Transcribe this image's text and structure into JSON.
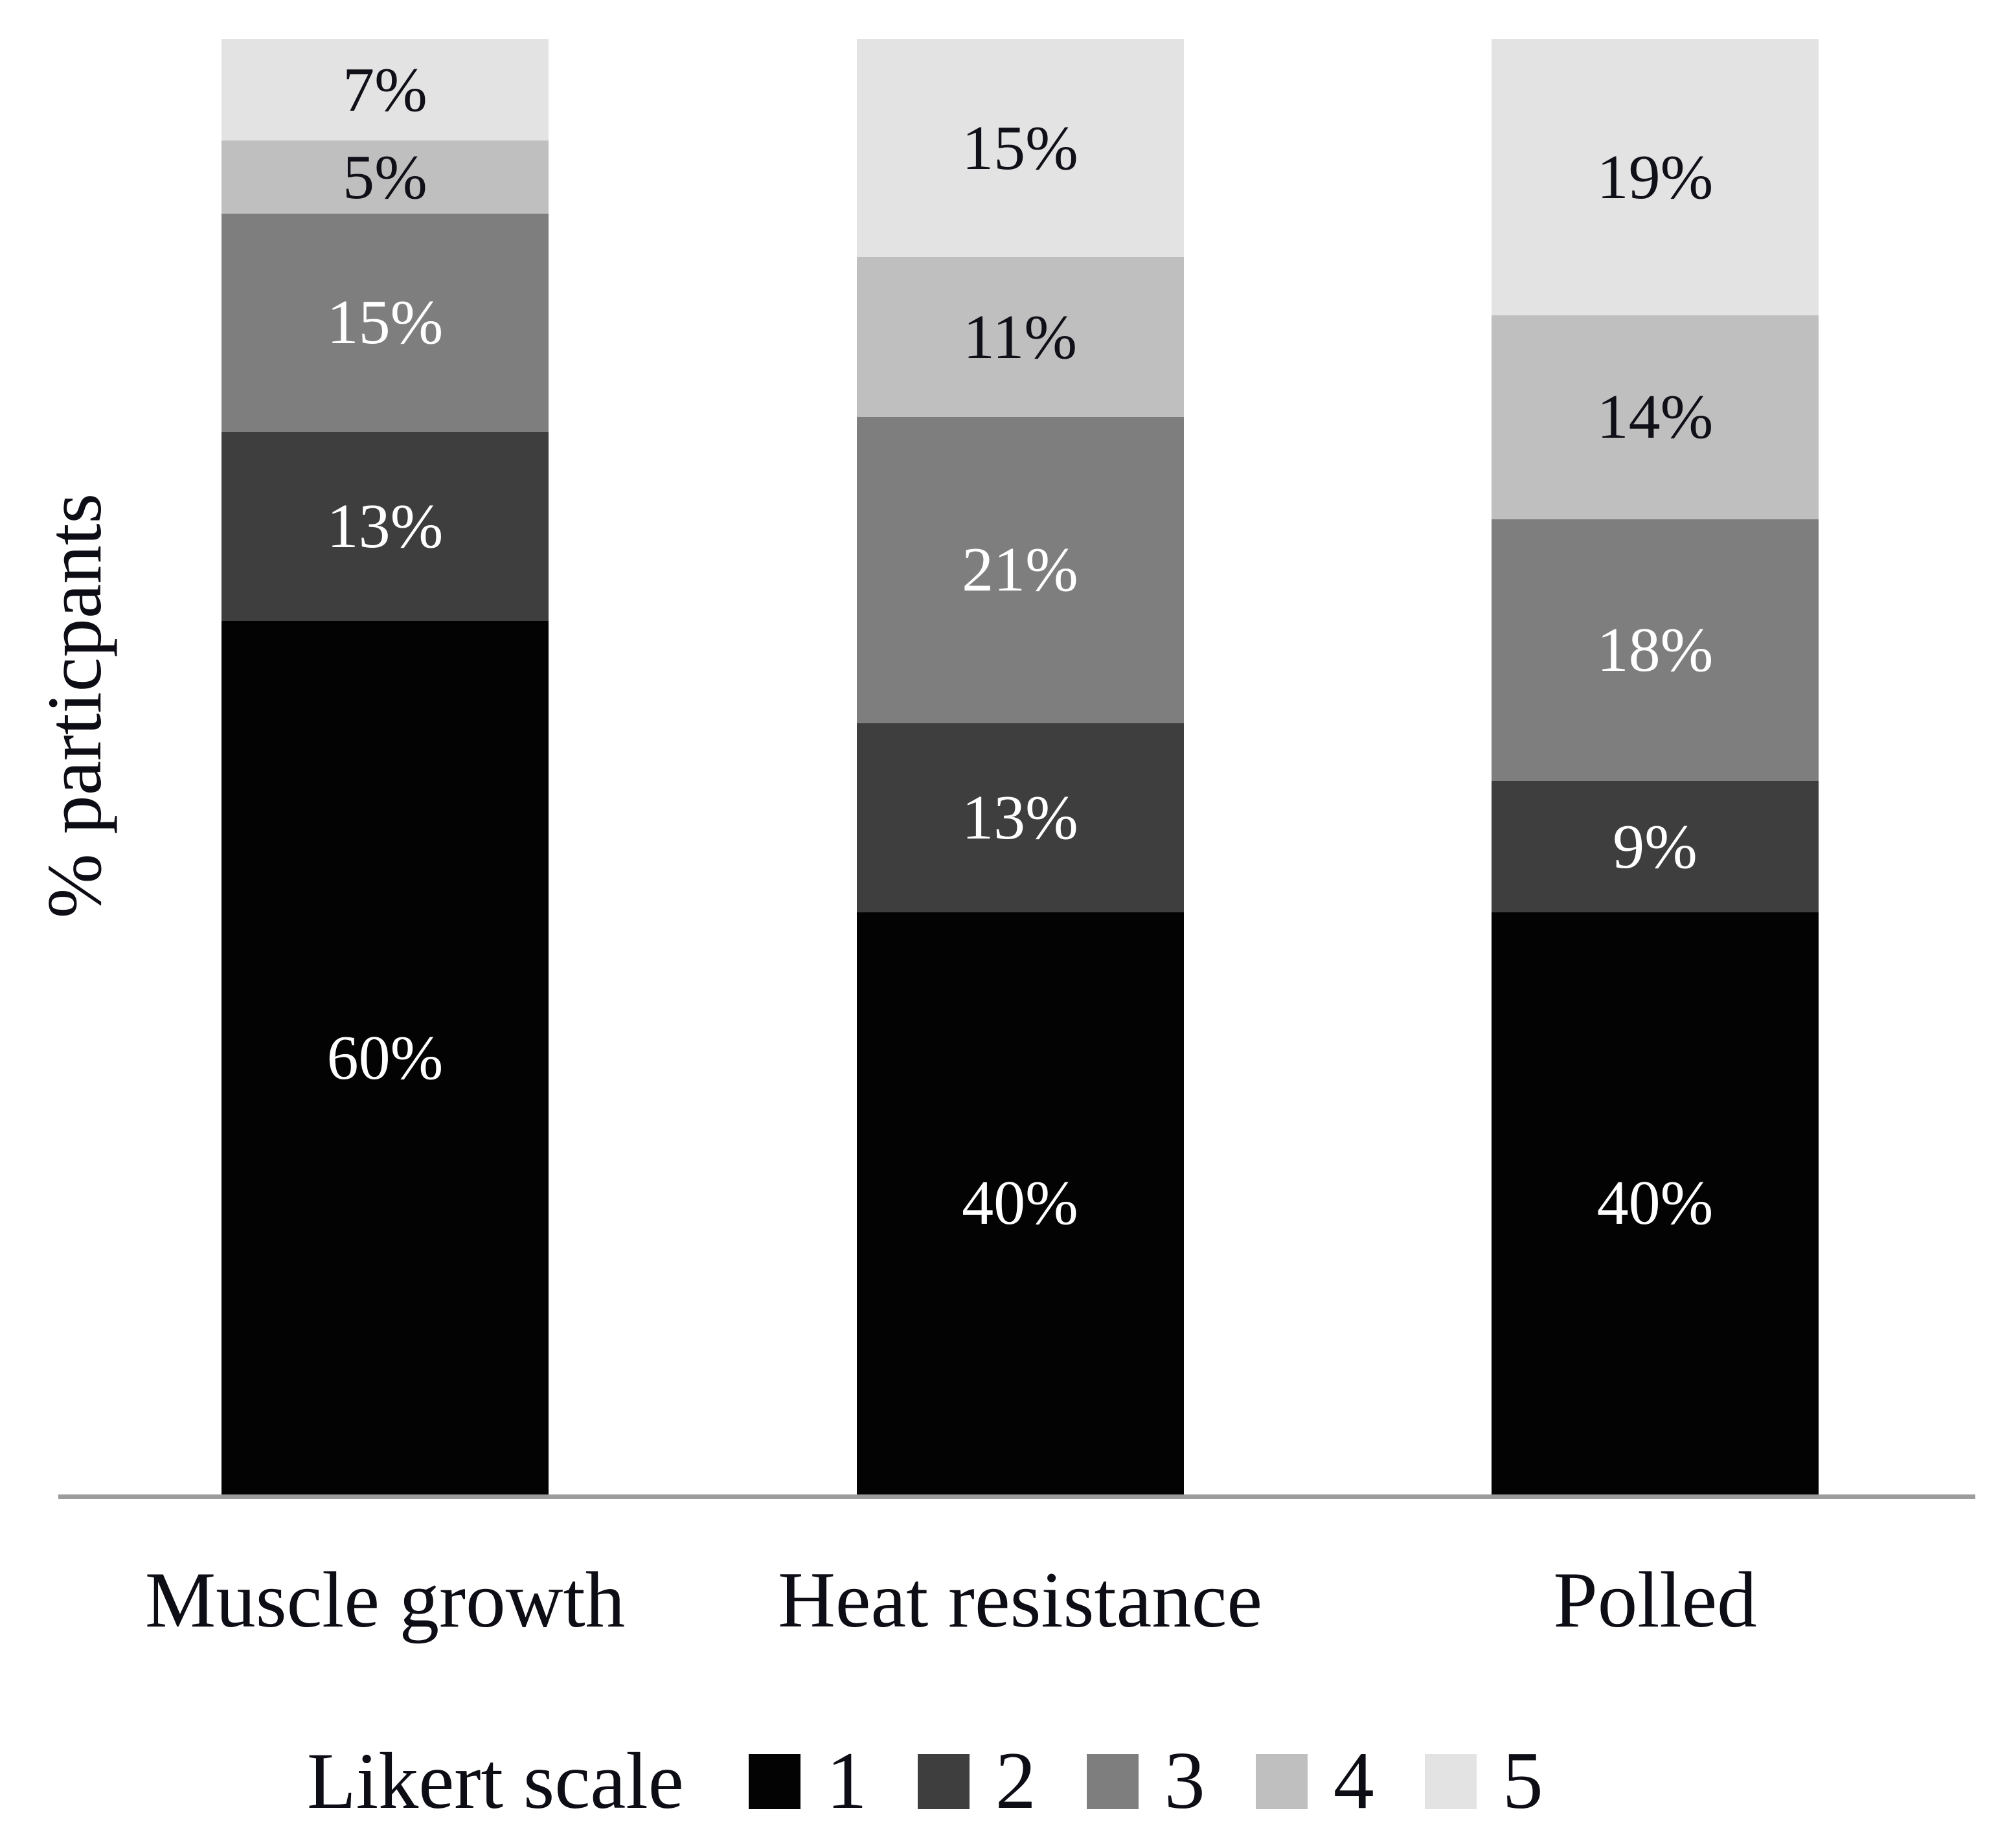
{
  "chart_data": {
    "type": "bar",
    "stacked": true,
    "percent_stacked": true,
    "title": "",
    "xlabel": "",
    "ylabel": "% particpants",
    "ylim": [
      0,
      100
    ],
    "grid": false,
    "axis_line_color": "#9c9c9c",
    "text_color": "#0d0d15",
    "categories": [
      "Muscle growth",
      "Heat resistance",
      "Polled"
    ],
    "series": [
      {
        "name": "1",
        "color": "#030303",
        "label_color": "#ffffff",
        "values": [
          60,
          40,
          40
        ]
      },
      {
        "name": "2",
        "color": "#3e3e3e",
        "label_color": "#ffffff",
        "values": [
          13,
          13,
          9
        ]
      },
      {
        "name": "3",
        "color": "#7e7e7e",
        "label_color": "#ffffff",
        "values": [
          15,
          21,
          18
        ]
      },
      {
        "name": "4",
        "color": "#bfbfbf",
        "label_color": "#101018",
        "values": [
          5,
          11,
          14
        ]
      },
      {
        "name": "5",
        "color": "#e3e3e3",
        "label_color": "#101018",
        "values": [
          7,
          15,
          19
        ]
      }
    ],
    "data_labels": {
      "muscle_growth": [
        "60%",
        "13%",
        "15%",
        "5%",
        "7%"
      ],
      "heat_resistance": [
        "40%",
        "13%",
        "21%",
        "11%",
        "15%"
      ],
      "polled": [
        "40%",
        "9%",
        "18%",
        "14%",
        "19%"
      ]
    },
    "legend": {
      "title": "Likert scale",
      "position": "bottom",
      "entries": [
        "1",
        "2",
        "3",
        "4",
        "5"
      ]
    }
  }
}
